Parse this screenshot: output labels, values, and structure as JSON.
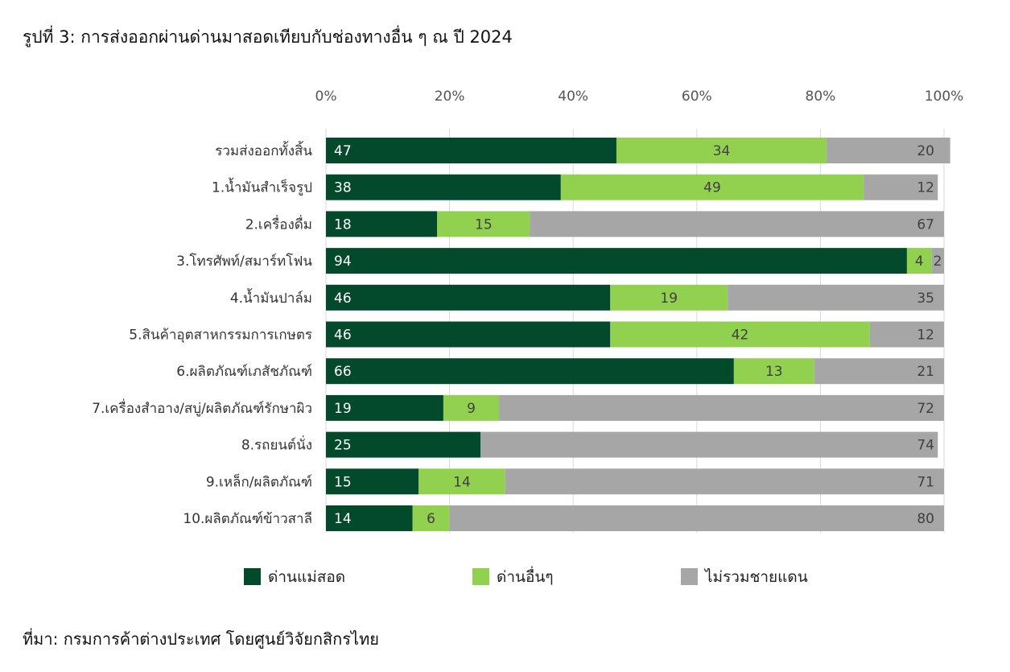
{
  "title": "รูปที่ 3: การส่งออกผ่านด่านมาสอดเทียบกับช่องทางอื่น ๆ ณ ปี 2024",
  "source": "ที่มา: กรมการค้าต่างประเทศ โดยศูนย์วิจัยกสิกรไทย",
  "chart_data": {
    "type": "bar",
    "orientation": "horizontal",
    "stacked": true,
    "percent_stacked": true,
    "title": "",
    "xlabel": "",
    "ylabel": "",
    "x_ticks": [
      "0%",
      "20%",
      "40%",
      "60%",
      "80%",
      "100%"
    ],
    "xlim": [
      0,
      100
    ],
    "x_axis_position": "top",
    "grid": true,
    "legend_position": "bottom",
    "categories": [
      "รวมส่งออกทั้งสิ้น",
      "1.น้ำมันสำเร็จรูป",
      "2.เครื่องดื่ม",
      "3.โทรศัพท์/สมาร์ทโฟน",
      "4.น้ำมันปาล์ม",
      "5.สินค้าอุตสาหกรรมการเกษตร",
      "6.ผลิตภัณฑ์เภสัชภัณฑ์",
      "7.เครื่องสำอาง/สบู่/ผลิตภัณฑ์รักษาผิว",
      "8.รถยนต์นั่ง",
      "9.เหล็ก/ผลิตภัณฑ์",
      "10.ผลิตภัณฑ์ข้าวสาลี"
    ],
    "series": [
      {
        "name": "ด่านแม่สอด",
        "color": "#034a2c",
        "label_color": "#ffffff",
        "values": [
          47,
          38,
          18,
          94,
          46,
          46,
          66,
          19,
          25,
          15,
          14
        ]
      },
      {
        "name": "ด่านอื่นๆ",
        "color": "#92d050",
        "label_color": "#404040",
        "values": [
          34,
          49,
          15,
          4,
          19,
          42,
          13,
          9,
          0,
          14,
          6
        ]
      },
      {
        "name": "ไม่รวมชายแดน",
        "color": "#a6a6a6",
        "label_color": "#404040",
        "values": [
          20,
          12,
          67,
          2,
          35,
          12,
          21,
          72,
          74,
          71,
          80
        ]
      }
    ]
  }
}
